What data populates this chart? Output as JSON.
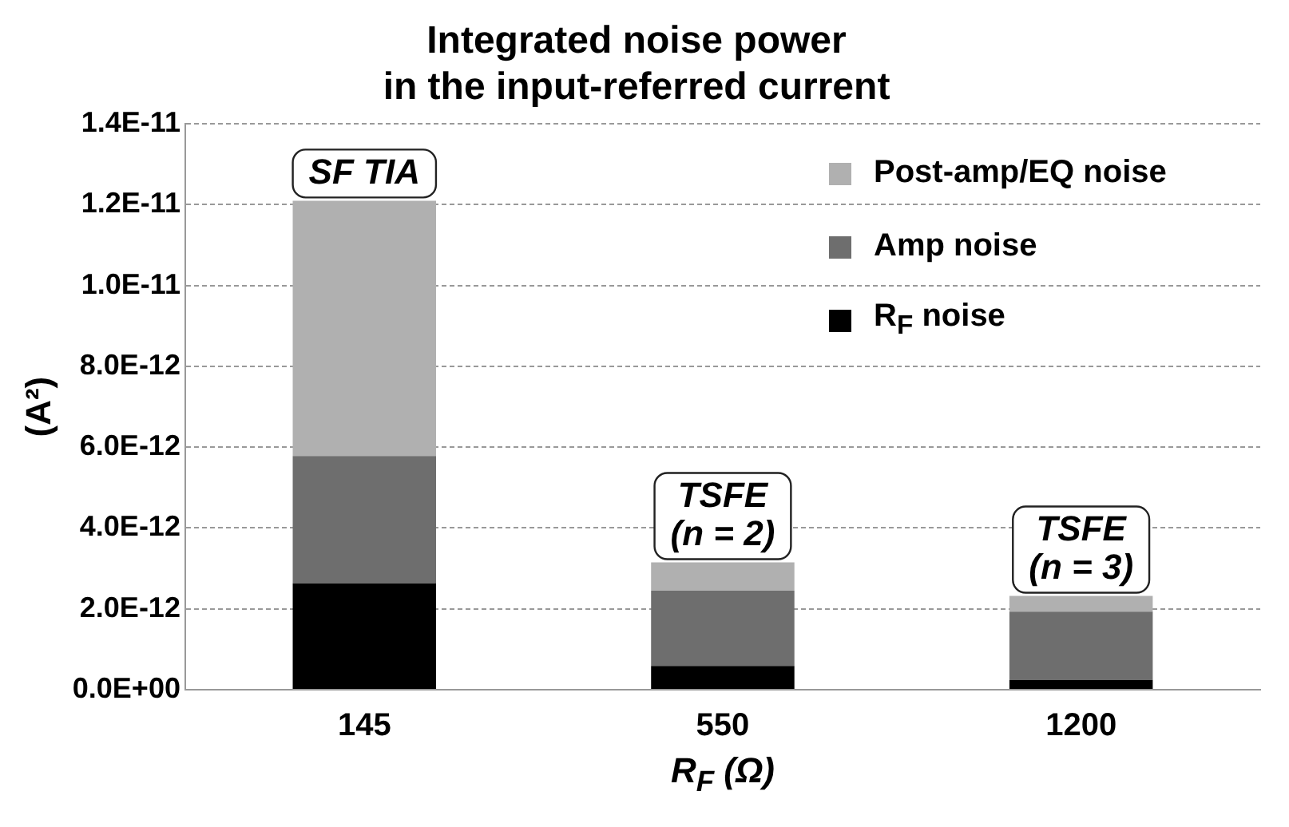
{
  "chart_data": {
    "type": "bar",
    "title": "Integrated noise power\nin the input-referred current",
    "xlabel": "R$_{F}$ (Ω)",
    "ylabel": "(A²)",
    "categories": [
      "145",
      "550",
      "1200"
    ],
    "stacked": true,
    "series": [
      {
        "name": "R$_{F}$ noise",
        "color": "#000000",
        "values": [
          2.63e-12,
          5.9e-13,
          2.4e-13
        ]
      },
      {
        "name": "Amp noise",
        "color": "#6e6e6e",
        "values": [
          3.15e-12,
          1.86e-12,
          1.69e-12
        ]
      },
      {
        "name": "Post-amp/EQ noise",
        "color": "#b0b0b0",
        "values": [
          6.32e-12,
          7e-13,
          3.9e-13
        ]
      }
    ],
    "ylim": [
      0,
      1.4e-11
    ],
    "yticks": [
      {
        "value": 0,
        "label": "0.0E+00"
      },
      {
        "value": 2e-12,
        "label": "2.0E-12"
      },
      {
        "value": 4e-12,
        "label": "4.0E-12"
      },
      {
        "value": 6e-12,
        "label": "6.0E-12"
      },
      {
        "value": 8e-12,
        "label": "8.0E-12"
      },
      {
        "value": 1e-11,
        "label": "1.0E-11"
      },
      {
        "value": 1.2e-11,
        "label": "1.2E-11"
      },
      {
        "value": 1.4e-11,
        "label": "1.4E-11"
      }
    ],
    "grid": "y",
    "legend": "top right",
    "annotations": [
      {
        "text": "SF TIA",
        "x": "145",
        "y": 1.21e-11
      },
      {
        "text": "TSFE\n(n = 2)",
        "x": "550",
        "y": 3.15e-12
      },
      {
        "text": "TSFE\n(n = 3)",
        "x": "1200",
        "y": 2.32e-12
      }
    ]
  }
}
